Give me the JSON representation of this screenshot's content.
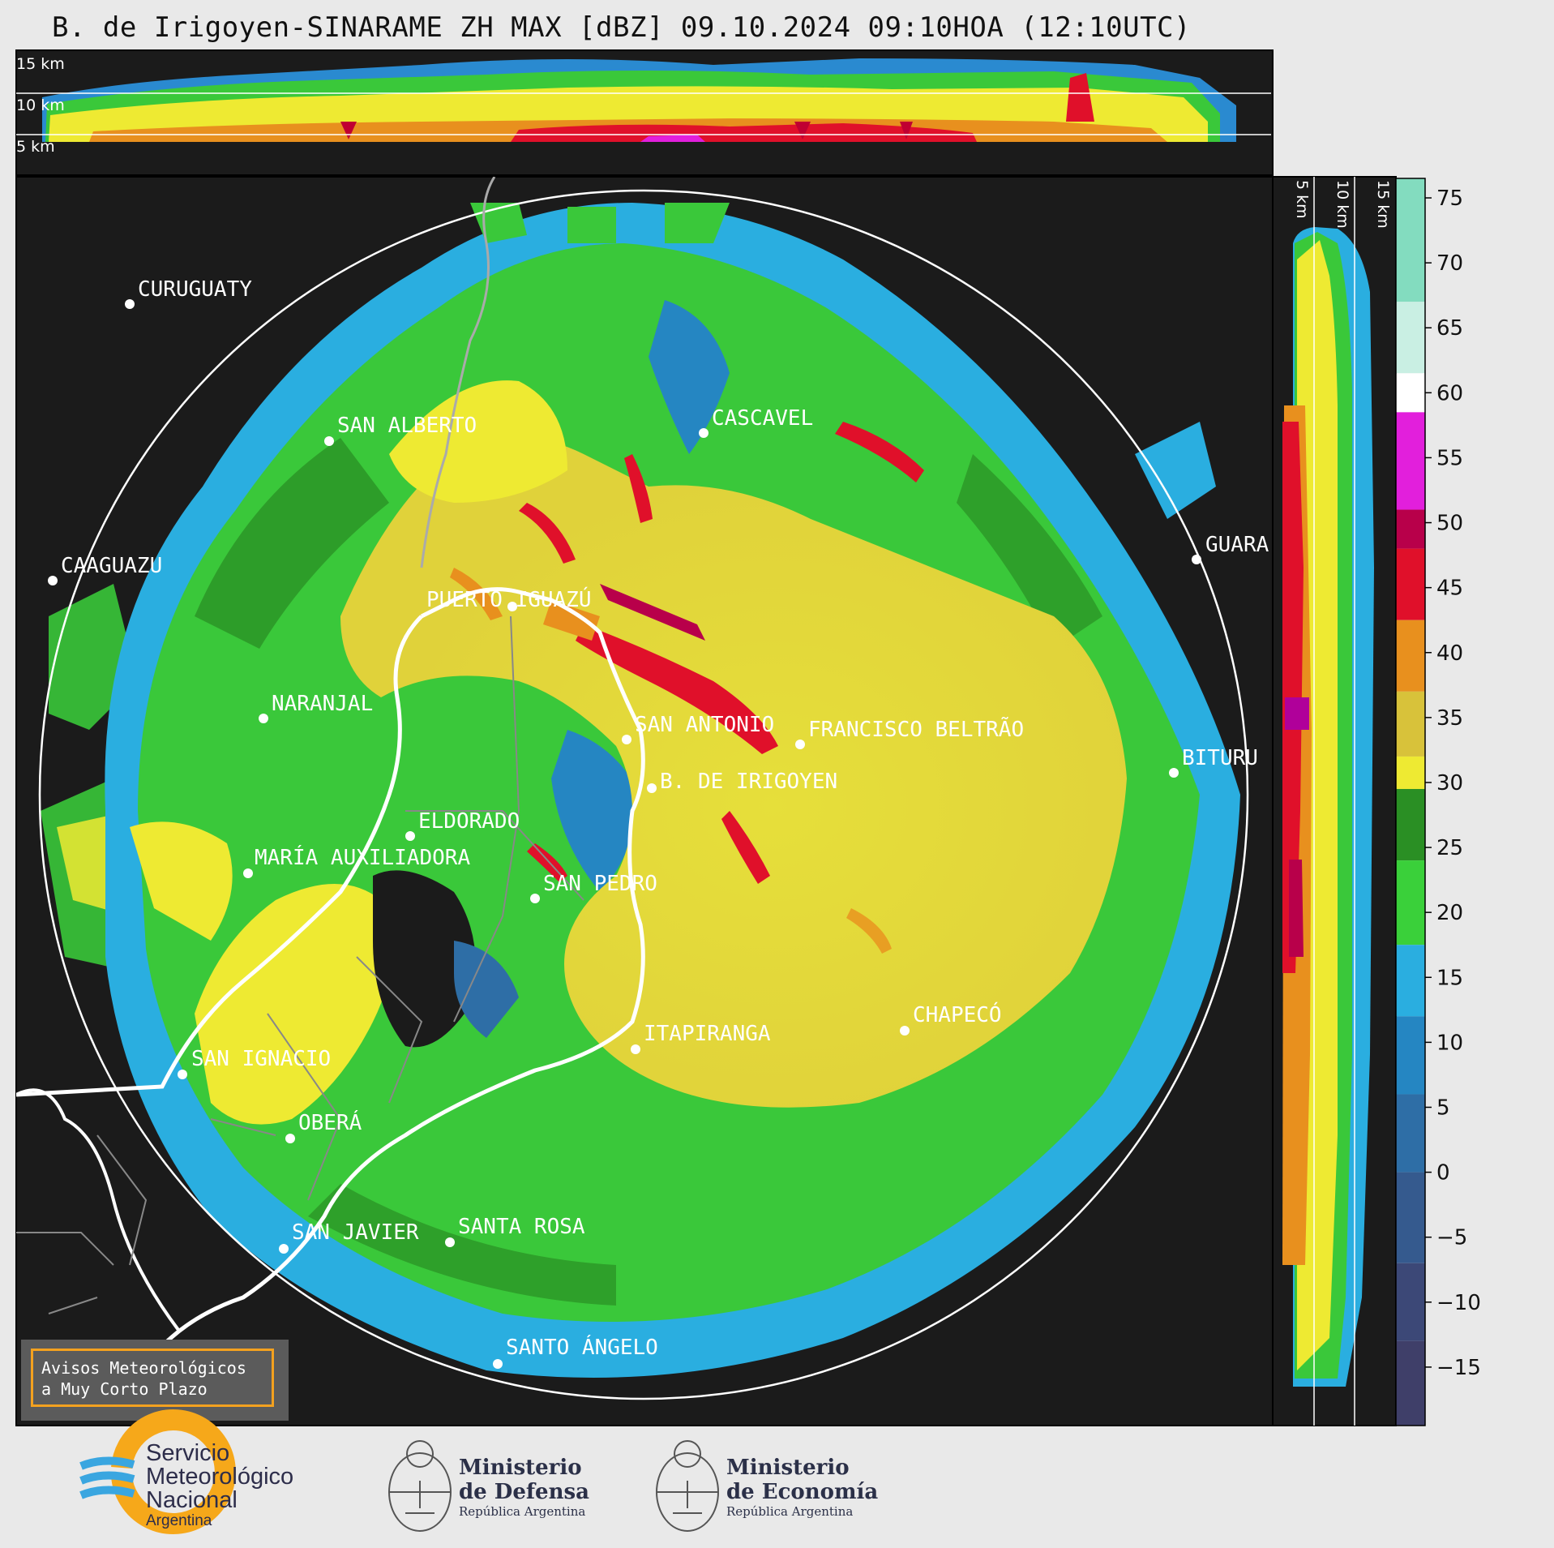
{
  "title": "B. de Irigoyen-SINARAME ZH MAX [dBZ] 09.10.2024 09:10HOA (12:10UTC)",
  "cross_section_top": {
    "labels": [
      "15 km",
      "10 km",
      "5 km"
    ]
  },
  "cross_section_right": {
    "labels": [
      "5 km",
      "10 km",
      "15 km"
    ]
  },
  "cities": [
    {
      "name": "CURUGUATY"
    },
    {
      "name": "SAN ALBERTO"
    },
    {
      "name": "CASCAVEL"
    },
    {
      "name": "CAAGUAZU"
    },
    {
      "name": "GUARA"
    },
    {
      "name": "PUERTO IGUAZÚ"
    },
    {
      "name": "NARANJAL"
    },
    {
      "name": "SAN ANTONIO"
    },
    {
      "name": "FRANCISCO BELTRÃO"
    },
    {
      "name": "BITURU"
    },
    {
      "name": "B. DE IRIGOYEN"
    },
    {
      "name": "ELDORADO"
    },
    {
      "name": "MARÍA AUXILIADORA"
    },
    {
      "name": "SAN PEDRO"
    },
    {
      "name": "CHAPECÓ"
    },
    {
      "name": "ITAPIRANGA"
    },
    {
      "name": "SAN IGNACIO"
    },
    {
      "name": "OBERÁ"
    },
    {
      "name": "SAN JAVIER"
    },
    {
      "name": "SANTA ROSA"
    },
    {
      "name": "SANTO ÁNGELO"
    }
  ],
  "colorbar": {
    "ticks": [
      "75",
      "70",
      "65",
      "60",
      "55",
      "50",
      "45",
      "40",
      "35",
      "30",
      "25",
      "20",
      "15",
      "10",
      "5",
      "0",
      "−5",
      "−10",
      "−15"
    ],
    "colors": {
      "c75": "#83dcbf",
      "c65": "#c9efe3",
      "c60": "#ffffff",
      "c55": "#e21fdc",
      "c50": "#b8004a",
      "c45": "#e0102a",
      "c40": "#e8901e",
      "c35": "#d8c23a",
      "c30": "#eeea32",
      "c25": "#2a8f24",
      "c20": "#3ad03a",
      "c15": "#2aaee0",
      "c10": "#2586c2",
      "c5": "#2e6ea6",
      "c0": "#355a8e",
      "cm10": "#3c4877",
      "cm15": "#3f3f69"
    }
  },
  "warning_box": {
    "line1": "Avisos Meteorológicos",
    "line2": "a Muy Corto Plazo"
  },
  "logos": {
    "smn": {
      "line1": "Servicio",
      "line2": "Meteorológico",
      "line3": "Nacional",
      "line4": "Argentina"
    },
    "defensa": {
      "line1": "Ministerio",
      "line2": "de Defensa",
      "line3": "República Argentina"
    },
    "economia": {
      "line1": "Ministerio",
      "line2": "de Economía",
      "line3": "República Argentina"
    }
  }
}
